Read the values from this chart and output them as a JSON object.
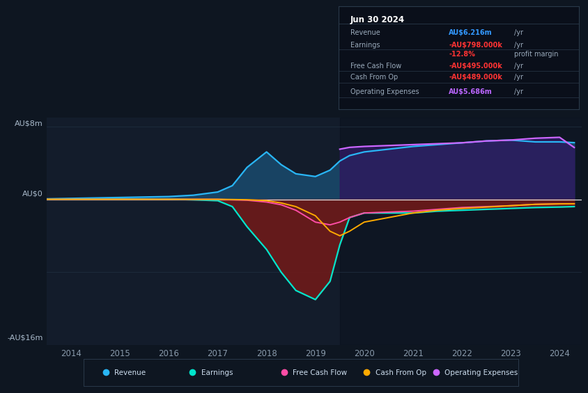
{
  "bg_color": "#0e1621",
  "plot_bg_color": "#131c2b",
  "title_box": {
    "date": "Jun 30 2024",
    "rows": [
      {
        "label": "Revenue",
        "value": "AU$6.216m",
        "unit": "/yr",
        "value_color": "#3399ff"
      },
      {
        "label": "Earnings",
        "value": "-AU$798.000k",
        "unit": "/yr",
        "value_color": "#ff3333"
      },
      {
        "label": "",
        "value": "-12.8%",
        "unit": "profit margin",
        "value_color": "#ff3333"
      },
      {
        "label": "Free Cash Flow",
        "value": "-AU$495.000k",
        "unit": "/yr",
        "value_color": "#ff3333"
      },
      {
        "label": "Cash From Op",
        "value": "-AU$489.000k",
        "unit": "/yr",
        "value_color": "#ff3333"
      },
      {
        "label": "Operating Expenses",
        "value": "AU$5.686m",
        "unit": "/yr",
        "value_color": "#bb66ff"
      }
    ]
  },
  "years": [
    2013.5,
    2014.0,
    2014.5,
    2015.0,
    2015.5,
    2016.0,
    2016.5,
    2017.0,
    2017.3,
    2017.6,
    2018.0,
    2018.3,
    2018.6,
    2019.0,
    2019.3,
    2019.5,
    2019.7,
    2020.0,
    2020.5,
    2021.0,
    2021.5,
    2022.0,
    2022.5,
    2023.0,
    2023.5,
    2024.0,
    2024.3
  ],
  "revenue": [
    0.05,
    0.1,
    0.15,
    0.2,
    0.25,
    0.3,
    0.45,
    0.8,
    1.5,
    3.5,
    5.2,
    3.8,
    2.8,
    2.5,
    3.2,
    4.2,
    4.8,
    5.2,
    5.5,
    5.8,
    6.0,
    6.2,
    6.4,
    6.5,
    6.3,
    6.3,
    6.216
  ],
  "earnings": [
    0.02,
    0.02,
    0.02,
    0.02,
    0.02,
    0.02,
    -0.05,
    -0.15,
    -0.8,
    -3.0,
    -5.5,
    -8.0,
    -10.0,
    -11.0,
    -9.0,
    -5.0,
    -2.0,
    -1.5,
    -1.5,
    -1.5,
    -1.3,
    -1.2,
    -1.1,
    -1.0,
    -0.9,
    -0.85,
    -0.798
  ],
  "free_cash_flow": [
    0.0,
    0.0,
    0.0,
    0.0,
    0.0,
    0.0,
    0.0,
    0.0,
    -0.05,
    -0.1,
    -0.3,
    -0.6,
    -1.2,
    -2.5,
    -2.8,
    -2.5,
    -2.0,
    -1.5,
    -1.4,
    -1.3,
    -1.1,
    -0.9,
    -0.8,
    -0.7,
    -0.55,
    -0.5,
    -0.495
  ],
  "cash_from_op": [
    0.0,
    0.0,
    0.0,
    0.0,
    0.0,
    0.0,
    0.0,
    0.0,
    -0.02,
    -0.05,
    -0.15,
    -0.4,
    -0.8,
    -1.8,
    -3.5,
    -4.0,
    -3.5,
    -2.5,
    -2.0,
    -1.5,
    -1.2,
    -1.0,
    -0.85,
    -0.7,
    -0.55,
    -0.5,
    -0.489
  ],
  "op_expenses": [
    0.0,
    0.0,
    0.0,
    0.0,
    0.0,
    0.0,
    0.0,
    0.0,
    0.0,
    0.0,
    0.0,
    0.0,
    0.0,
    0.0,
    0.0,
    5.5,
    5.7,
    5.8,
    5.9,
    6.0,
    6.1,
    6.2,
    6.4,
    6.5,
    6.7,
    6.8,
    5.686
  ],
  "ylim": [
    -16,
    9
  ],
  "ytick_positions": [
    -16,
    -8,
    0,
    8
  ],
  "ytick_labels": [
    "-AU$16m",
    "",
    "AU$0",
    "AU$8m"
  ],
  "xticks": [
    2014,
    2015,
    2016,
    2017,
    2018,
    2019,
    2020,
    2021,
    2022,
    2023,
    2024
  ],
  "colors": {
    "revenue": "#29b6f6",
    "earnings": "#00e5cc",
    "free_cash_flow": "#ff4da6",
    "cash_from_op": "#ffaa00",
    "op_expenses": "#cc66ff",
    "revenue_fill_pos": "#1a4a6e",
    "earnings_fill_neg": "#6e1a1a",
    "op_expenses_fill": "#2d1a5e",
    "zero_line": "#e0e0e0",
    "grid": "#1e2d3d"
  },
  "forecast_start": 2019.5,
  "legend": [
    {
      "label": "Revenue",
      "color": "#29b6f6"
    },
    {
      "label": "Earnings",
      "color": "#00e5cc"
    },
    {
      "label": "Free Cash Flow",
      "color": "#ff4da6"
    },
    {
      "label": "Cash From Op",
      "color": "#ffaa00"
    },
    {
      "label": "Operating Expenses",
      "color": "#cc66ff"
    }
  ]
}
